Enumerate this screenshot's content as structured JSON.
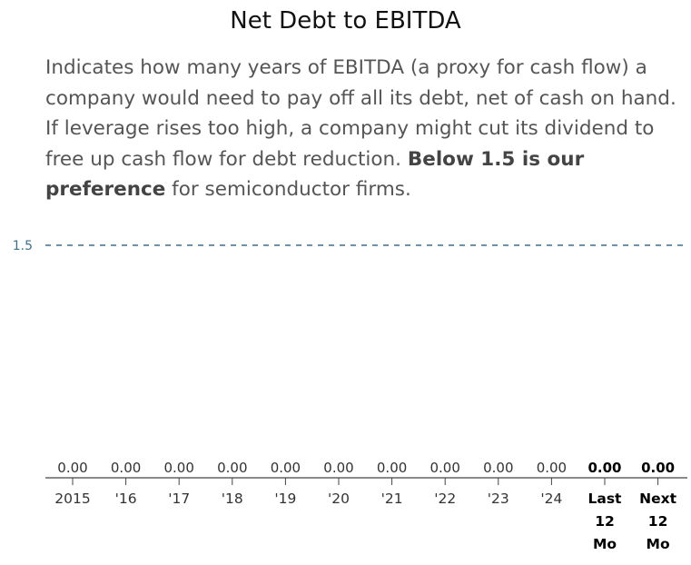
{
  "header": {
    "title": "Net Debt to EBITDA",
    "desc_part1": "Indicates how many years of EBITDA (a proxy for cash flow) a company would need to pay off all its debt, net of cash on hand. If leverage rises too high, a company might cut its dividend to free up cash flow for debt reduction. ",
    "desc_bold": "Below 1.5 is our preference",
    "desc_part2": " for semiconductor firms."
  },
  "chart_data": {
    "type": "bar",
    "categories": [
      "2015",
      "'16",
      "'17",
      "'18",
      "'19",
      "'20",
      "'21",
      "'22",
      "'23",
      "'24",
      "Last 12 Mo",
      "Next 12 Mo"
    ],
    "category_lines": [
      [
        "2015"
      ],
      [
        "'16"
      ],
      [
        "'17"
      ],
      [
        "'18"
      ],
      [
        "'19"
      ],
      [
        "'20"
      ],
      [
        "'21"
      ],
      [
        "'22"
      ],
      [
        "'23"
      ],
      [
        "'24"
      ],
      [
        "Last",
        "12",
        "Mo"
      ],
      [
        "Next",
        "12",
        "Mo"
      ]
    ],
    "values": [
      0,
      0,
      0,
      0,
      0,
      0,
      0,
      0,
      0,
      0,
      0,
      0
    ],
    "value_labels": [
      "0.00",
      "0.00",
      "0.00",
      "0.00",
      "0.00",
      "0.00",
      "0.00",
      "0.00",
      "0.00",
      "0.00",
      "0.00",
      "0.00"
    ],
    "bold_categories": [
      "Last 12 Mo",
      "Next 12 Mo"
    ],
    "reference_line": {
      "value": 1.5,
      "label": "1.5",
      "style": "dashed",
      "color": "#3f6f8f"
    },
    "ylim": [
      0,
      1.5
    ],
    "grid": false,
    "legend": "none",
    "colors": {
      "baseline": "#444444",
      "reference": "#3f6f8f"
    }
  }
}
